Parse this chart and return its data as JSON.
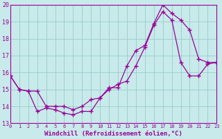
{
  "line1_x": [
    0,
    1,
    2,
    3,
    4,
    5,
    6,
    7,
    8,
    9,
    10,
    11,
    12,
    13,
    14,
    15,
    16,
    17,
    18,
    19,
    20,
    21,
    22,
    23
  ],
  "line1_y": [
    15.8,
    15.0,
    14.9,
    13.7,
    13.9,
    13.8,
    13.6,
    13.5,
    13.7,
    13.7,
    14.5,
    15.1,
    15.1,
    16.4,
    17.3,
    17.6,
    18.9,
    20.0,
    19.5,
    19.1,
    18.5,
    16.8,
    16.6,
    16.6
  ],
  "line2_x": [
    0,
    1,
    2,
    3,
    4,
    5,
    6,
    7,
    8,
    9,
    10,
    11,
    12,
    13,
    14,
    15,
    16,
    17,
    18,
    19,
    20,
    21,
    22,
    23
  ],
  "line2_y": [
    15.8,
    15.0,
    14.9,
    14.9,
    14.0,
    14.0,
    14.0,
    13.8,
    14.0,
    14.4,
    14.5,
    15.0,
    15.3,
    15.5,
    16.4,
    17.5,
    18.8,
    19.6,
    19.1,
    16.6,
    15.8,
    15.8,
    16.5,
    16.6
  ],
  "color": "#990099",
  "bg_color": "#c8eaea",
  "grid_color": "#99cccc",
  "xlabel": "Windchill (Refroidissement éolien,°C)",
  "xlim": [
    0,
    23
  ],
  "ylim": [
    13,
    20
  ],
  "xticks": [
    0,
    1,
    2,
    3,
    4,
    5,
    6,
    7,
    8,
    9,
    10,
    11,
    12,
    13,
    14,
    15,
    16,
    17,
    18,
    19,
    20,
    21,
    22,
    23
  ],
  "yticks": [
    13,
    14,
    15,
    16,
    17,
    18,
    19,
    20
  ],
  "marker": "+",
  "markersize": 4,
  "linewidth": 0.9,
  "title_fontsize": 7,
  "tick_fontsize": 5.5,
  "xlabel_fontsize": 6.5
}
